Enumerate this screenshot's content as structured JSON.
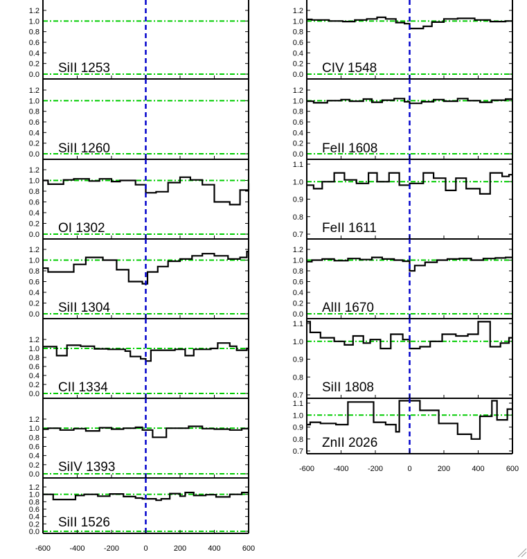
{
  "colors": {
    "zero_line": "#0000cc",
    "continuum": "#00cc00",
    "spectrum": "#000000",
    "frame": "#000000"
  },
  "chart_data": [
    {
      "type": "line",
      "title": "",
      "label": "SiII 1253",
      "xlim": [
        -600,
        600
      ],
      "ylim": [
        0.0,
        1.35
      ],
      "yticks": [
        "0.0",
        "0.2",
        "0.4",
        "0.6",
        "0.8",
        "1.0",
        "1.2"
      ],
      "xticks": [],
      "step": true,
      "x": [],
      "y": []
    },
    {
      "type": "line",
      "title": "",
      "label": "SiII 1260",
      "xlim": [
        -600,
        600
      ],
      "ylim": [
        0.0,
        1.35
      ],
      "yticks": [
        "0.0",
        "0.2",
        "0.4",
        "0.6",
        "0.8",
        "1.0",
        "1.2"
      ],
      "xticks": [],
      "step": true,
      "x": [],
      "y": []
    },
    {
      "type": "line",
      "title": "",
      "label": "OI 1302",
      "xlim": [
        -600,
        600
      ],
      "ylim": [
        0.0,
        1.35
      ],
      "yticks": [
        "0.0",
        "0.2",
        "0.4",
        "0.6",
        "0.8",
        "1.0",
        "1.2"
      ],
      "xticks": [],
      "step": true,
      "x": [
        -600,
        -570,
        -480,
        -420,
        -330,
        -270,
        -200,
        -150,
        -60,
        0,
        60,
        130,
        200,
        260,
        330,
        400,
        490,
        550,
        600
      ],
      "y": [
        1.0,
        0.93,
        1.01,
        1.03,
        0.99,
        1.03,
        0.98,
        1.0,
        0.92,
        0.77,
        0.79,
        0.96,
        1.06,
        1.01,
        0.92,
        0.6,
        0.55,
        0.82,
        0.95
      ]
    },
    {
      "type": "line",
      "title": "",
      "label": "SiII 1304",
      "xlim": [
        -600,
        600
      ],
      "ylim": [
        0.0,
        1.35
      ],
      "yticks": [
        "0.0",
        "0.2",
        "0.4",
        "0.6",
        "0.8",
        "1.0",
        "1.2"
      ],
      "xticks": [],
      "step": true,
      "x": [
        -600,
        -570,
        -420,
        -350,
        -250,
        -170,
        -100,
        -20,
        10,
        70,
        130,
        200,
        270,
        330,
        400,
        480,
        550,
        590
      ],
      "y": [
        0.85,
        0.78,
        0.92,
        1.05,
        1.0,
        0.82,
        0.6,
        0.56,
        0.78,
        0.88,
        0.98,
        1.02,
        1.08,
        1.12,
        1.08,
        1.02,
        1.05,
        1.16
      ]
    },
    {
      "type": "line",
      "title": "",
      "label": "CII 1334",
      "xlim": [
        -600,
        600
      ],
      "ylim": [
        0.0,
        1.35
      ],
      "yticks": [
        "0.0",
        "0.2",
        "0.4",
        "0.6",
        "0.8",
        "1.0",
        "1.2"
      ],
      "xticks": [],
      "step": true,
      "x": [
        -600,
        -520,
        -460,
        -380,
        -300,
        -220,
        -120,
        -90,
        -30,
        0,
        30,
        170,
        230,
        280,
        380,
        420,
        490,
        530,
        590
      ],
      "y": [
        1.04,
        0.84,
        1.07,
        1.05,
        0.99,
        0.98,
        0.94,
        0.82,
        0.77,
        0.72,
        0.96,
        0.98,
        0.84,
        0.98,
        1.0,
        1.12,
        1.05,
        0.96,
        1.0
      ]
    },
    {
      "type": "line",
      "title": "",
      "label": "SiIV 1393",
      "xlim": [
        -600,
        600
      ],
      "ylim": [
        0.0,
        1.35
      ],
      "yticks": [
        "0.0",
        "0.2",
        "0.4",
        "0.6",
        "0.8",
        "1.0",
        "1.2"
      ],
      "xticks": [],
      "step": true,
      "x": [
        -600,
        -570,
        -500,
        -420,
        -350,
        -270,
        -200,
        -130,
        -60,
        -20,
        40,
        120,
        200,
        250,
        330,
        400,
        490,
        560
      ],
      "y": [
        0.98,
        1.0,
        0.96,
        0.99,
        0.94,
        1.01,
        0.98,
        1.0,
        1.02,
        0.96,
        0.8,
        1.0,
        1.0,
        1.04,
        0.99,
        0.98,
        0.96,
        0.99
      ]
    },
    {
      "type": "line",
      "title": "",
      "label": "SiII 1526",
      "xlim": [
        -600,
        600
      ],
      "ylim": [
        0.0,
        1.35
      ],
      "yticks": [
        "0.0",
        "0.2",
        "0.4",
        "0.6",
        "0.8",
        "1.0",
        "1.2"
      ],
      "xticks": [
        "-600",
        "-400",
        "-200",
        "0",
        "200",
        "400",
        "600"
      ],
      "step": true,
      "x": [
        -600,
        -540,
        -410,
        -360,
        -280,
        -210,
        -130,
        -60,
        -20,
        60,
        90,
        140,
        200,
        230,
        280,
        350,
        410,
        490,
        560
      ],
      "y": [
        1.0,
        0.86,
        0.97,
        1.0,
        0.95,
        1.01,
        0.94,
        0.9,
        0.88,
        0.84,
        0.88,
        1.02,
        0.95,
        1.05,
        0.97,
        0.99,
        0.93,
        1.0,
        1.05
      ]
    },
    {
      "type": "line",
      "title": "",
      "label": "CIV 1548",
      "xlim": [
        -600,
        600
      ],
      "ylim": [
        0.0,
        1.35
      ],
      "yticks": [
        "0.0",
        "0.2",
        "0.4",
        "0.6",
        "0.8",
        "1.0",
        "1.2"
      ],
      "xticks": [],
      "step": true,
      "x": [
        -600,
        -570,
        -470,
        -390,
        -320,
        -250,
        -190,
        -140,
        -80,
        -30,
        0,
        80,
        130,
        200,
        280,
        380,
        470,
        560
      ],
      "y": [
        1.03,
        1.02,
        1.0,
        0.99,
        1.02,
        1.04,
        1.07,
        1.04,
        0.97,
        0.95,
        0.86,
        0.9,
        0.98,
        1.04,
        1.05,
        1.02,
        0.99,
        1.0
      ]
    },
    {
      "type": "line",
      "title": "",
      "label": "FeII 1608",
      "xlim": [
        -600,
        600
      ],
      "ylim": [
        0.0,
        1.35
      ],
      "yticks": [
        "0.0",
        "0.2",
        "0.4",
        "0.6",
        "0.8",
        "1.0",
        "1.2"
      ],
      "xticks": [],
      "step": true,
      "x": [
        -600,
        -560,
        -480,
        -400,
        -350,
        -270,
        -220,
        -160,
        -90,
        -30,
        0,
        70,
        140,
        200,
        280,
        340,
        410,
        480,
        560
      ],
      "y": [
        0.99,
        0.96,
        1.0,
        1.02,
        0.99,
        1.03,
        0.97,
        1.01,
        1.04,
        0.98,
        0.95,
        0.98,
        1.02,
        0.99,
        1.04,
        1.0,
        0.97,
        1.01,
        1.03
      ]
    },
    {
      "type": "line",
      "title": "",
      "label": "FeII 1611",
      "xlim": [
        -600,
        600
      ],
      "ylim": [
        0.7,
        1.12
      ],
      "yticks": [
        "0.7",
        "0.8",
        "0.9",
        "1.0",
        "1.1"
      ],
      "xticks": [],
      "step": true,
      "x": [
        -600,
        -560,
        -510,
        -440,
        -380,
        -310,
        -240,
        -190,
        -120,
        -60,
        0,
        80,
        140,
        210,
        270,
        330,
        410,
        470,
        540,
        580
      ],
      "y": [
        0.98,
        0.96,
        1.0,
        1.05,
        1.01,
        0.99,
        1.05,
        1.0,
        1.05,
        0.98,
        0.99,
        1.05,
        1.02,
        0.95,
        1.02,
        0.96,
        0.93,
        1.05,
        1.03,
        1.04
      ]
    },
    {
      "type": "line",
      "title": "",
      "label": "AlII 1670",
      "xlim": [
        -600,
        600
      ],
      "ylim": [
        0.0,
        1.35
      ],
      "yticks": [
        "0.0",
        "0.2",
        "0.4",
        "0.6",
        "0.8",
        "1.0",
        "1.2"
      ],
      "xticks": [],
      "step": true,
      "x": [
        -600,
        -570,
        -510,
        -440,
        -360,
        -290,
        -220,
        -160,
        -90,
        -40,
        0,
        30,
        90,
        160,
        220,
        290,
        360,
        430,
        500,
        560
      ],
      "y": [
        0.97,
        1.0,
        1.02,
        0.99,
        1.03,
        1.01,
        1.05,
        1.02,
        1.0,
        0.98,
        0.8,
        0.9,
        0.96,
        1.0,
        1.02,
        1.03,
        1.0,
        1.03,
        1.04,
        1.05
      ]
    },
    {
      "type": "line",
      "title": "",
      "label": "SiII 1808",
      "xlim": [
        -600,
        600
      ],
      "ylim": [
        0.7,
        1.12
      ],
      "yticks": [
        "0.7",
        "0.8",
        "0.9",
        "1.0",
        "1.1"
      ],
      "xticks": [],
      "step": true,
      "x": [
        -600,
        -580,
        -520,
        -440,
        -380,
        -330,
        -270,
        -230,
        -170,
        -110,
        -40,
        0,
        60,
        120,
        190,
        270,
        340,
        400,
        470,
        530,
        580
      ],
      "y": [
        1.11,
        1.05,
        1.02,
        1.0,
        0.98,
        1.03,
        0.99,
        1.01,
        0.96,
        1.04,
        1.01,
        0.96,
        0.97,
        1.0,
        1.04,
        1.03,
        1.04,
        1.11,
        0.97,
        0.99,
        1.02
      ]
    },
    {
      "type": "line",
      "title": "",
      "label": "ZnII 2026",
      "xlim": [
        -600,
        600
      ],
      "ylim": [
        0.7,
        1.12
      ],
      "yticks": [
        "0.7",
        "0.8",
        "0.9",
        "1.0",
        "1.1"
      ],
      "xticks": [
        "-600",
        "-400",
        "-200",
        "0",
        "200",
        "400",
        "600"
      ],
      "step": true,
      "x": [
        -600,
        -580,
        -520,
        -430,
        -360,
        -210,
        -140,
        -80,
        -60,
        60,
        140,
        170,
        280,
        360,
        410,
        480,
        510,
        570
      ],
      "y": [
        0.92,
        0.94,
        0.93,
        0.92,
        1.11,
        0.94,
        0.92,
        0.86,
        1.12,
        1.04,
        1.04,
        0.93,
        0.84,
        0.8,
        0.99,
        1.12,
        0.96,
        1.05
      ]
    }
  ]
}
